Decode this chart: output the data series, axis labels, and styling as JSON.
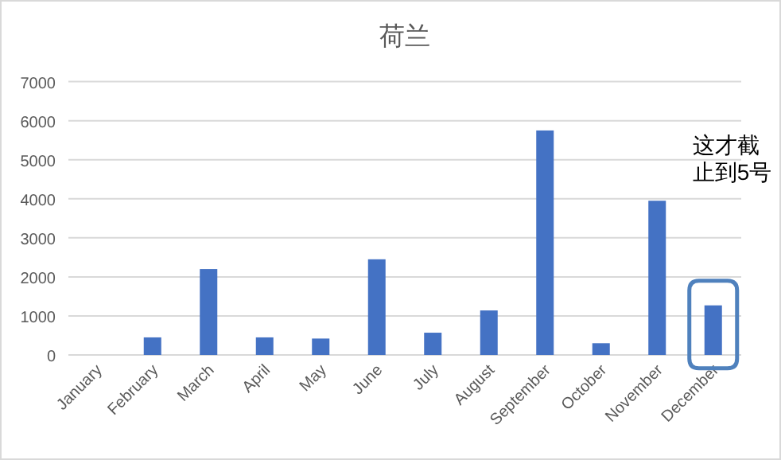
{
  "chart_data": {
    "type": "bar",
    "title": "荷兰",
    "categories": [
      "January",
      "February",
      "March",
      "April",
      "May",
      "June",
      "July",
      "August",
      "September",
      "October",
      "November",
      "December"
    ],
    "values": [
      0,
      450,
      2200,
      450,
      420,
      2450,
      570,
      1140,
      5750,
      300,
      3950,
      1270
    ],
    "color": "#4472c4",
    "ylim": [
      0,
      7000
    ],
    "yticks": [
      0,
      1000,
      2000,
      3000,
      4000,
      5000,
      6000,
      7000
    ],
    "grid": "y",
    "annotations": [
      "这才截止到5号"
    ]
  }
}
